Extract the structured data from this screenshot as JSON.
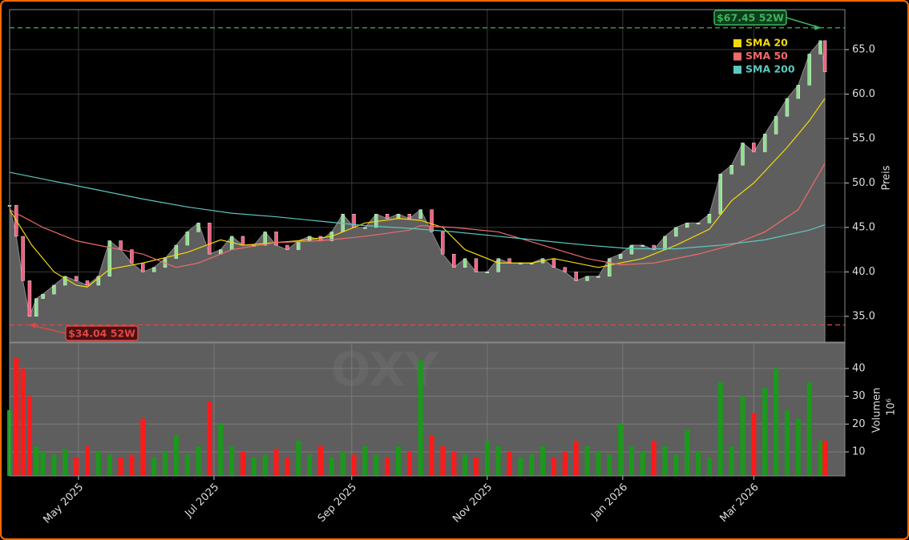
{
  "chart_data": [
    {
      "type": "area",
      "color": "#5e5e5e",
      "x": [
        0,
        3,
        6,
        9,
        12,
        15,
        20,
        25,
        30,
        35,
        40,
        45,
        50,
        55,
        60,
        65,
        70,
        75,
        80,
        85,
        90,
        95,
        100,
        105,
        110,
        115,
        120,
        125,
        130,
        135,
        140,
        145,
        150,
        155,
        160,
        165,
        170,
        175,
        180,
        185,
        190,
        195,
        200,
        205,
        210,
        215,
        220,
        225,
        230,
        235,
        240,
        245,
        250,
        255,
        260,
        265,
        270,
        275,
        280,
        285,
        290,
        295,
        300,
        305,
        310,
        315,
        320,
        325,
        330,
        335,
        340,
        345,
        350,
        355,
        360,
        365,
        367
      ],
      "values": [
        47.5,
        44,
        39,
        35,
        37,
        37.5,
        38.5,
        39.5,
        39,
        38.5,
        39.5,
        43.5,
        42.5,
        41,
        40,
        40.5,
        41.5,
        43,
        44.5,
        45.5,
        42,
        42.5,
        44,
        43,
        43,
        44.5,
        43,
        42.5,
        43.5,
        44,
        43.5,
        44.5,
        46.5,
        45,
        45,
        46.5,
        46,
        46.5,
        46,
        47,
        44.5,
        42,
        40.5,
        41.5,
        40,
        40,
        41.5,
        41,
        41,
        41,
        41.5,
        40.5,
        40,
        39,
        39.5,
        39.5,
        41.5,
        42,
        43,
        43,
        42.5,
        44,
        45,
        45.5,
        45.5,
        46.5,
        51,
        52,
        54.5,
        53.5,
        55.5,
        57.5,
        59.5,
        61,
        64.5,
        66,
        62.5
      ],
      "up_color": "#8fe08f",
      "down_color": "#f06080",
      "series": [
        {
          "name": "SMA 20",
          "color": "#f5d90a",
          "x": [
            0,
            10,
            20,
            30,
            35,
            45,
            60,
            80,
            95,
            105,
            130,
            145,
            160,
            175,
            185,
            195,
            205,
            220,
            235,
            245,
            265,
            285,
            300,
            315,
            325,
            335,
            350,
            360,
            367
          ],
          "values": [
            47,
            43,
            40,
            38.5,
            38.3,
            40.3,
            41,
            42.2,
            43.6,
            43,
            43.5,
            44,
            45.5,
            46,
            45.8,
            45,
            42.5,
            41,
            41,
            41.5,
            40.5,
            41.5,
            43,
            44.8,
            48,
            50,
            54,
            57,
            59.5
          ]
        },
        {
          "name": "SMA 50",
          "color": "#f06a6a",
          "x": [
            0,
            15,
            30,
            60,
            75,
            85,
            100,
            120,
            140,
            160,
            180,
            185,
            200,
            220,
            240,
            260,
            275,
            290,
            310,
            325,
            340,
            355,
            367
          ],
          "values": [
            47,
            45,
            43.5,
            42,
            40.5,
            41,
            42.5,
            43.3,
            43.5,
            44,
            44.7,
            45.2,
            45,
            44.5,
            43,
            41.5,
            40.8,
            41,
            42,
            43,
            44.5,
            47,
            52.2
          ]
        },
        {
          "name": "SMA 200",
          "color": "#5cc8c0",
          "x": [
            0,
            20,
            40,
            60,
            80,
            100,
            120,
            140,
            160,
            180,
            200,
            220,
            240,
            260,
            280,
            300,
            320,
            340,
            360,
            367
          ],
          "values": [
            51.2,
            50.2,
            49.2,
            48.2,
            47.3,
            46.6,
            46.2,
            45.7,
            45.2,
            44.9,
            44.5,
            44,
            43.5,
            43,
            42.6,
            42.6,
            43,
            43.6,
            44.7,
            45.3
          ]
        }
      ],
      "annotations": [
        {
          "value": 67.45,
          "label": "$67.45 52W",
          "x": 365,
          "color": "#3cb55a"
        },
        {
          "value": 34.04,
          "label": "$34.04 52W",
          "x": 9,
          "color": "#e04848"
        }
      ],
      "ylim": [
        32.1,
        69.5
      ],
      "yticks": [
        {
          "value": 35,
          "label": "35.0"
        },
        {
          "value": 40,
          "label": "40.0"
        },
        {
          "value": 45,
          "label": "45.0"
        },
        {
          "value": 50,
          "label": "50.0"
        },
        {
          "value": 55,
          "label": "55.0"
        },
        {
          "value": 60,
          "label": "60.0"
        },
        {
          "value": 65,
          "label": "65.0"
        }
      ],
      "y_label": "Preis",
      "watermark": "OXY",
      "grid": true
    },
    {
      "type": "bar",
      "x": [
        0,
        3,
        6,
        9,
        12,
        15,
        20,
        25,
        30,
        35,
        40,
        45,
        50,
        55,
        60,
        65,
        70,
        75,
        80,
        85,
        90,
        95,
        100,
        105,
        110,
        115,
        120,
        125,
        130,
        135,
        140,
        145,
        150,
        155,
        160,
        165,
        170,
        175,
        180,
        185,
        190,
        195,
        200,
        205,
        210,
        215,
        220,
        225,
        230,
        235,
        240,
        245,
        250,
        255,
        260,
        265,
        270,
        275,
        280,
        285,
        290,
        295,
        300,
        305,
        310,
        315,
        320,
        325,
        330,
        335,
        340,
        345,
        350,
        355,
        360,
        365,
        367
      ],
      "values": [
        25,
        44,
        40,
        30,
        12,
        10,
        9,
        11,
        8,
        12,
        10,
        9,
        8,
        9,
        22,
        8,
        10,
        16,
        9,
        12,
        28,
        20,
        12,
        10,
        8,
        9,
        11,
        8,
        14,
        9,
        12,
        8,
        10,
        9,
        12,
        9,
        8,
        12,
        10,
        43,
        16,
        12,
        10,
        9,
        8,
        14,
        12,
        10,
        8,
        9,
        12,
        8,
        10,
        14,
        12,
        10,
        9,
        20,
        12,
        10,
        14,
        12,
        9,
        18,
        10,
        8,
        35,
        12,
        30,
        24,
        33,
        40,
        25,
        22,
        35,
        14,
        14
      ],
      "up_color": "#1a9a1a",
      "down_color": "#ff1a1a",
      "ylim": [
        1.35,
        49.2
      ],
      "yticks": [
        10,
        20,
        30,
        40
      ],
      "y_label": "Volumen",
      "offset_label": "10⁶",
      "xlim": [
        0,
        376
      ],
      "xticks": [
        {
          "value": 31,
          "label": "May 2025"
        },
        {
          "value": 92,
          "label": "Jul 2025"
        },
        {
          "value": 154,
          "label": "Sep 2025"
        },
        {
          "value": 215,
          "label": "Nov 2025"
        },
        {
          "value": 276,
          "label": "Jan 2026"
        },
        {
          "value": 335,
          "label": "Mar 2026"
        }
      ],
      "grid": true
    }
  ]
}
